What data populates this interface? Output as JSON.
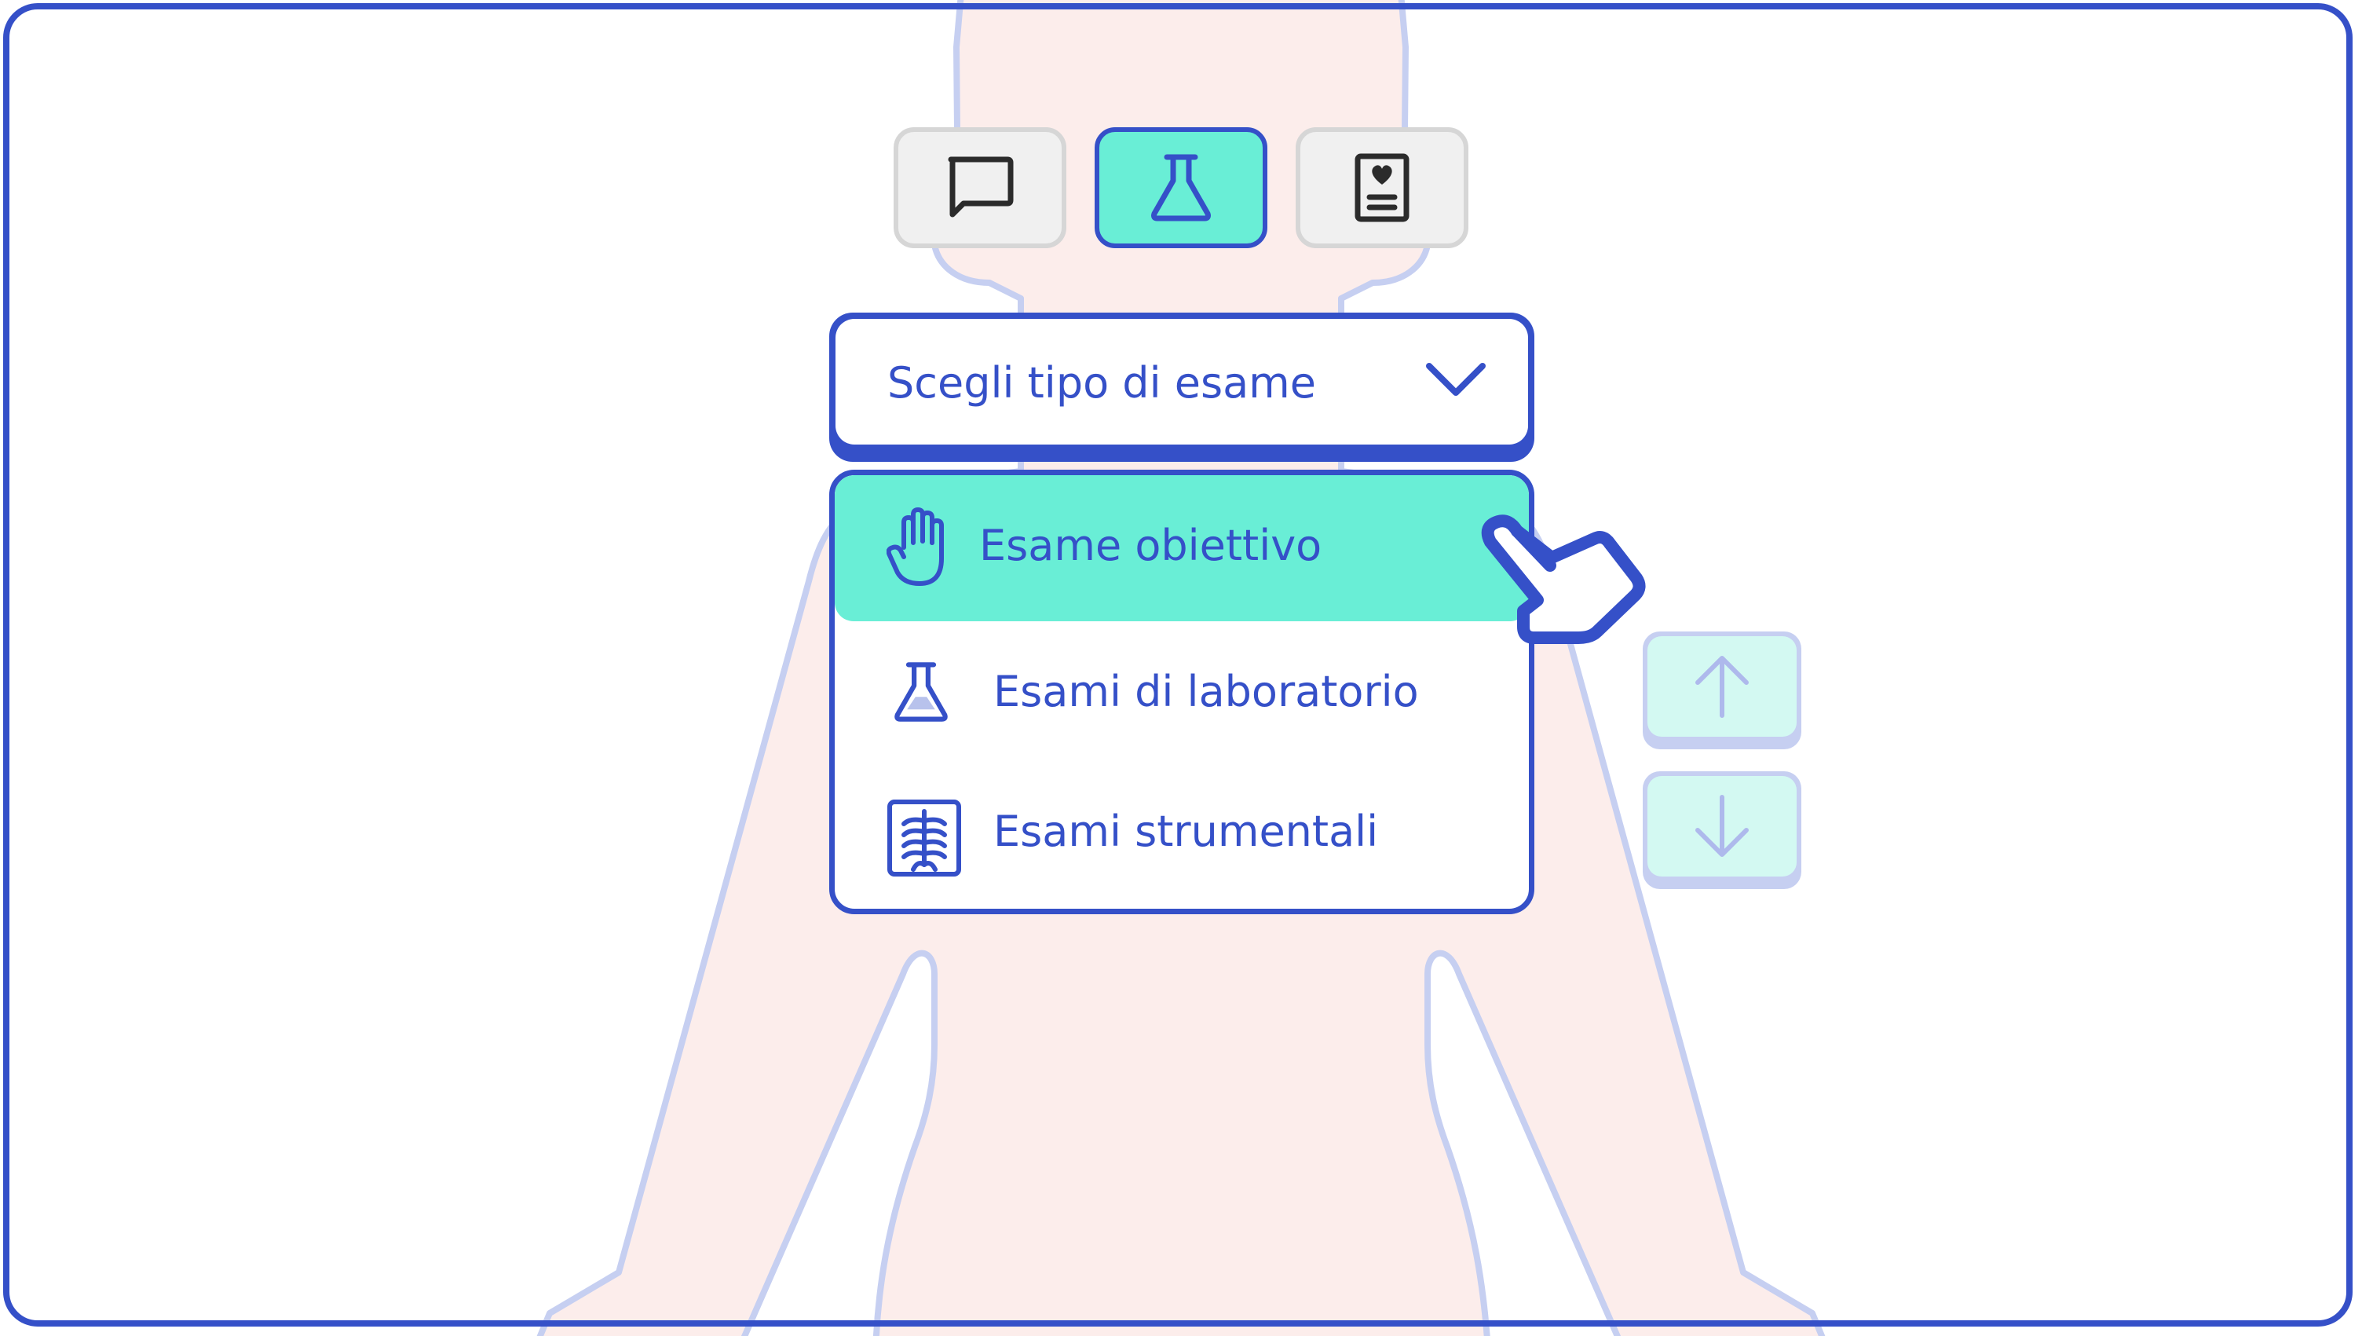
{
  "toolbar": {
    "buttons": [
      {
        "icon": "chat-bubble-icon",
        "active": false
      },
      {
        "icon": "flask-icon",
        "active": true
      },
      {
        "icon": "medical-record-icon",
        "active": false
      }
    ]
  },
  "select": {
    "label": "Scegli tipo di esame",
    "icon": "chevron-down-icon"
  },
  "menu": {
    "items": [
      {
        "label": "Esame obiettivo",
        "icon": "hand-icon",
        "selected": true
      },
      {
        "label": "Esami di laboratorio",
        "icon": "flask-icon",
        "selected": false
      },
      {
        "label": "Esami strumentali",
        "icon": "x-ray-icon",
        "selected": false
      }
    ]
  },
  "scroll": {
    "up_icon": "arrow-up-icon",
    "down_icon": "arrow-down-icon"
  },
  "colors": {
    "primary": "#3550C8",
    "accent": "#69EED6",
    "figure_fill": "#FCEDEB",
    "figure_outline": "#C6CFF1"
  }
}
